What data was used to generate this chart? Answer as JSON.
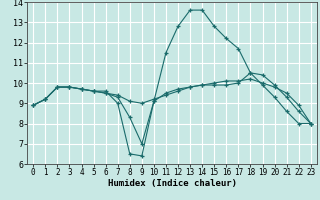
{
  "xlabel": "Humidex (Indice chaleur)",
  "xlim": [
    -0.5,
    23.5
  ],
  "ylim": [
    6,
    14
  ],
  "yticks": [
    6,
    7,
    8,
    9,
    10,
    11,
    12,
    13,
    14
  ],
  "xticks": [
    0,
    1,
    2,
    3,
    4,
    5,
    6,
    7,
    8,
    9,
    10,
    11,
    12,
    13,
    14,
    15,
    16,
    17,
    18,
    19,
    20,
    21,
    22,
    23
  ],
  "bg_color": "#c8e8e4",
  "grid_color": "#ffffff",
  "line_color": "#1a6b6b",
  "series": [
    [
      8.9,
      9.2,
      9.8,
      9.8,
      9.7,
      9.6,
      9.5,
      9.3,
      8.3,
      7.0,
      9.1,
      9.5,
      9.7,
      9.8,
      9.9,
      9.9,
      9.9,
      10.0,
      10.5,
      10.4,
      9.9,
      9.3,
      8.6,
      8.0
    ],
    [
      8.9,
      9.2,
      9.8,
      9.8,
      9.7,
      9.6,
      9.5,
      9.4,
      9.1,
      9.0,
      9.2,
      9.4,
      9.6,
      9.8,
      9.9,
      10.0,
      10.1,
      10.1,
      10.2,
      10.0,
      9.8,
      9.5,
      8.9,
      8.0
    ],
    [
      8.9,
      9.2,
      9.8,
      9.8,
      9.7,
      9.6,
      9.6,
      9.0,
      6.5,
      6.4,
      9.1,
      11.5,
      12.8,
      13.6,
      13.6,
      12.8,
      12.2,
      11.7,
      10.5,
      9.9,
      9.3,
      8.6,
      8.0,
      8.0
    ]
  ]
}
